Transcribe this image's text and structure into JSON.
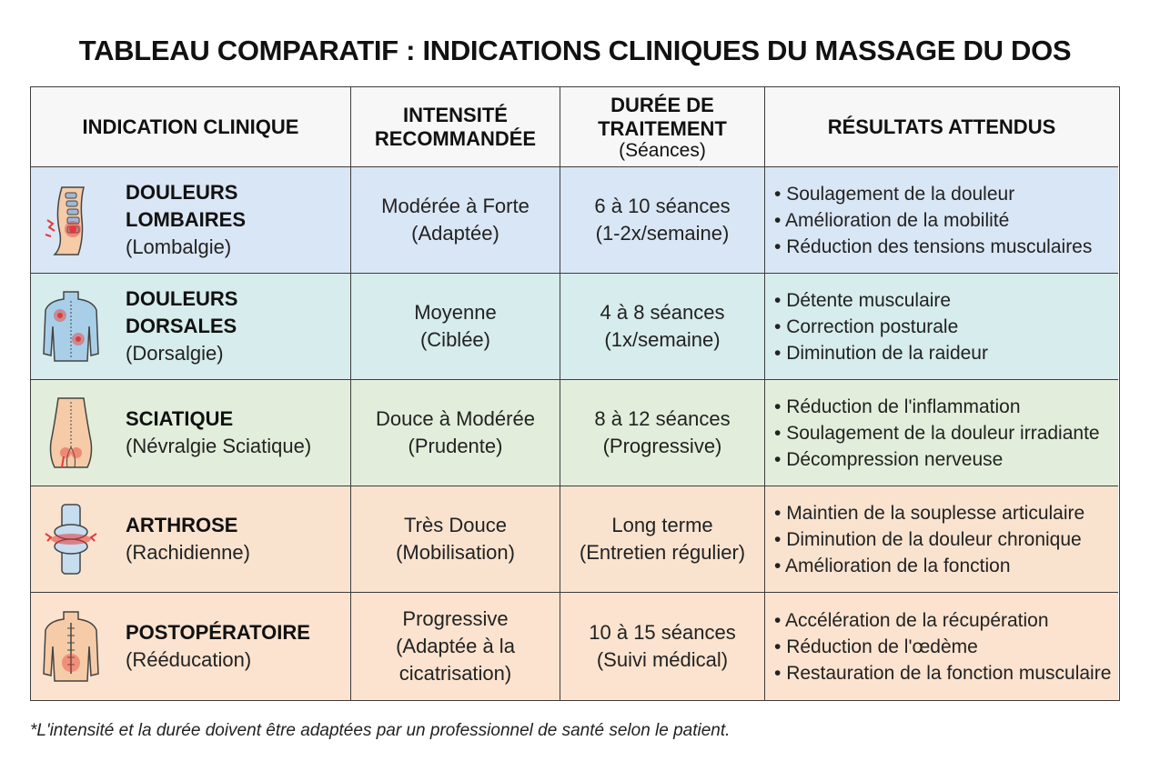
{
  "title": "TABLEAU COMPARATIF : INDICATIONS CLINIQUES DU MASSAGE DU DOS",
  "headers": {
    "col1": "INDICATION CLINIQUE",
    "col2_line1": "INTENSITÉ",
    "col2_line2": "RECOMMANDÉE",
    "col3_line1": "DURÉE DE",
    "col3_line2": "TRAITEMENT",
    "col3_sub": "(Séances)",
    "col4": "RÉSULTATS ATTENDUS"
  },
  "rows": [
    {
      "icon": "lumbar-spine-pain-icon",
      "name_line1": "DOULEURS",
      "name_line2": "LOMBAIRES",
      "paren": "(Lombalgie)",
      "intensity_line1": "Modérée à Forte",
      "intensity_line2": "(Adaptée)",
      "duration_line1": "6 à 10 séances",
      "duration_line2": "(1-2x/semaine)",
      "results": [
        "Soulagement de la douleur",
        "Amélioration de la mobilité",
        "Réduction des tensions musculaires"
      ]
    },
    {
      "icon": "upper-back-pain-icon",
      "name_line1": "DOULEURS",
      "name_line2": "DORSALES",
      "paren": "(Dorsalgie)",
      "intensity_line1": "Moyenne",
      "intensity_line2": "(Ciblée)",
      "duration_line1": "4 à 8 séances",
      "duration_line2": "(1x/semaine)",
      "results": [
        "Détente musculaire",
        "Correction posturale",
        "Diminution de la raideur"
      ]
    },
    {
      "icon": "sciatic-nerve-icon",
      "name_line1": "SCIATIQUE",
      "paren": "(Névralgie Sciatique)",
      "intensity_line1": "Douce à Modérée",
      "intensity_line2": "(Prudente)",
      "duration_line1": "8 à 12 séances",
      "duration_line2": "(Progressive)",
      "results": [
        "Réduction de l'inflammation",
        "Soulagement de la douleur irradiante",
        "Décompression nerveuse"
      ]
    },
    {
      "icon": "arthritic-joint-icon",
      "name_line1": "ARTHROSE",
      "paren": "(Rachidienne)",
      "intensity_line1": "Très Douce",
      "intensity_line2": "(Mobilisation)",
      "duration_line1": "Long terme",
      "duration_line2": "(Entretien régulier)",
      "results": [
        "Maintien de la souplesse articulaire",
        "Diminution de la douleur chronique",
        "Amélioration de la fonction"
      ]
    },
    {
      "icon": "post-surgery-back-icon",
      "name_line1": "POSTOPÉRATOIRE",
      "paren": "(Rééducation)",
      "intensity_line1": "Progressive",
      "intensity_line2": "(Adaptée à la",
      "intensity_line3": "cicatrisation)",
      "duration_line1": "10 à 15 séances",
      "duration_line2": "(Suivi médical)",
      "results": [
        "Accélération de la récupération",
        "Réduction de l'œdème",
        "Restauration de la fonction musculaire"
      ]
    }
  ],
  "footnote": "*L'intensité et la durée doivent être adaptées par un professionnel de santé selon le patient.",
  "colors": {
    "row1": "#d9e6f5",
    "row2": "#d7ecec",
    "row3": "#e2eedb",
    "row4": "#f9e3cf",
    "row5": "#fbe3cf",
    "pain": "#e53935",
    "skin": "#f6cba8",
    "blue_skin": "#a9cfe8"
  }
}
